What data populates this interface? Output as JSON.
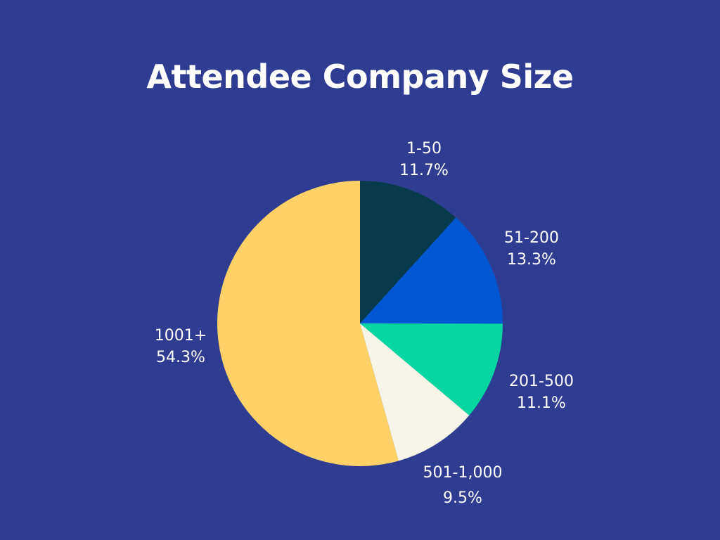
{
  "chart_data": {
    "type": "pie",
    "title": "Attendee Company Size",
    "start_angle_deg": 0,
    "direction": "clockwise",
    "slices": [
      {
        "label": "1-50",
        "value": 11.7,
        "value_text": "11.7%",
        "color": "#073b4c"
      },
      {
        "label": "51-200",
        "value": 13.3,
        "value_text": "13.3%",
        "color": "#0057d4"
      },
      {
        "label": "201-500",
        "value": 11.1,
        "value_text": "11.1%",
        "color": "#06d6a0"
      },
      {
        "label": "501-1,000",
        "value": 9.5,
        "value_text": "9.5%",
        "color": "#f6f5e8"
      },
      {
        "label": "1001+",
        "value": 54.3,
        "value_text": "54.3%",
        "color": "#ffd166"
      }
    ],
    "background_color": "#2e3d92",
    "label_color": "#ffffff"
  }
}
